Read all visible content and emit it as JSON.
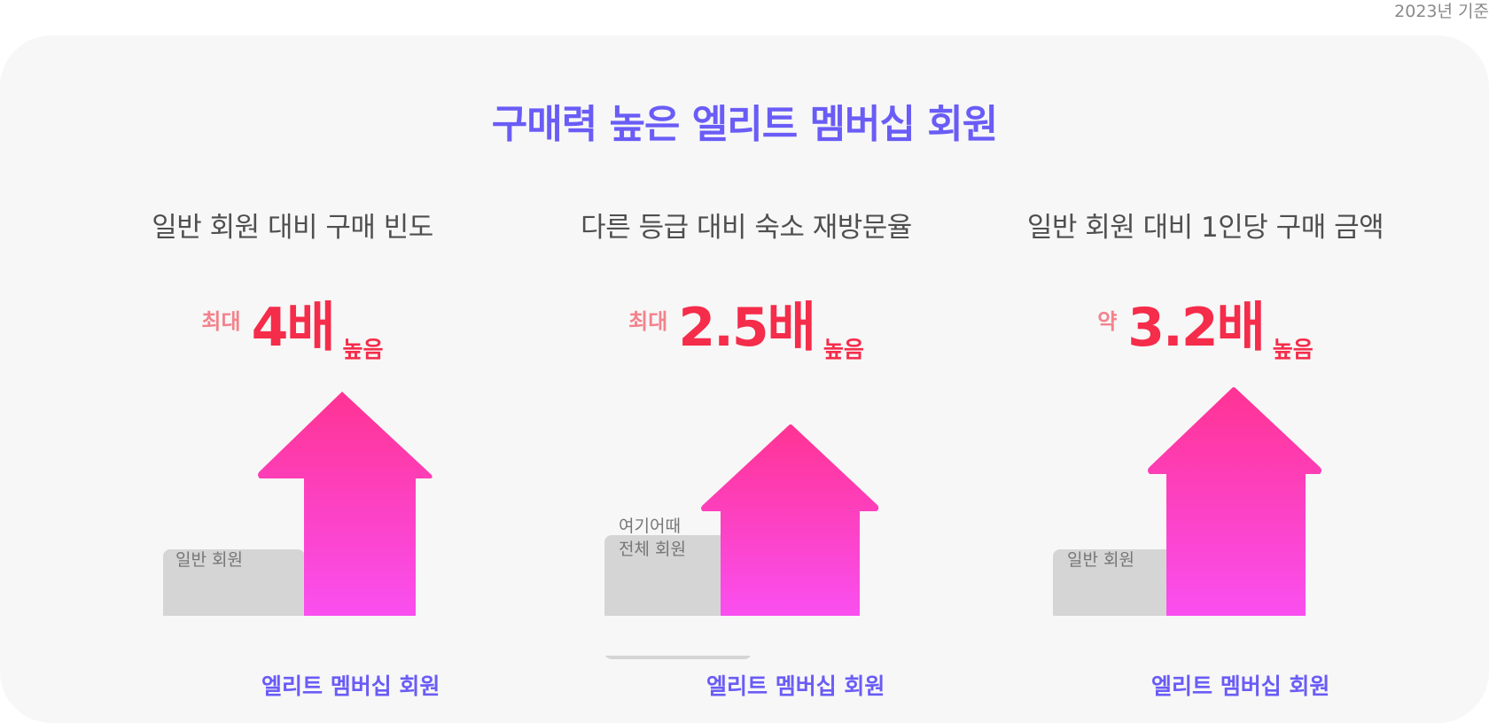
{
  "date_note": "2023년 기준",
  "headline": "구매력 높은 엘리트 멤버십 회원",
  "colors": {
    "headline": "#6a5cf6",
    "highlight": "#fde1e6",
    "stat_value": "#f52c4a",
    "stat_prefix": "#f3828c",
    "arrow_top": "#ff3393",
    "arrow_bottom": "#fa4ff0",
    "base_block": "#d5d5d5"
  },
  "panels": [
    {
      "title": "일반 회원 대비 구매 빈도",
      "prefix": "최대",
      "value": "4배",
      "suffix": "높음",
      "base_label_lines": [
        "일반 회원"
      ],
      "elite_label": "엘리트 멤버십 회원"
    },
    {
      "title": "다른 등급 대비 숙소 재방문율",
      "prefix": "최대",
      "value": "2.5배",
      "suffix": "높음",
      "base_label_lines": [
        "여기어때",
        "전체 회원"
      ],
      "elite_label": "엘리트 멤버십 회원"
    },
    {
      "title": "일반 회원 대비 1인당 구매 금액",
      "prefix": "약",
      "value": "3.2배",
      "suffix": "높음",
      "base_label_lines": [
        "일반 회원"
      ],
      "elite_label": "엘리트 멤버십 회원"
    }
  ]
}
